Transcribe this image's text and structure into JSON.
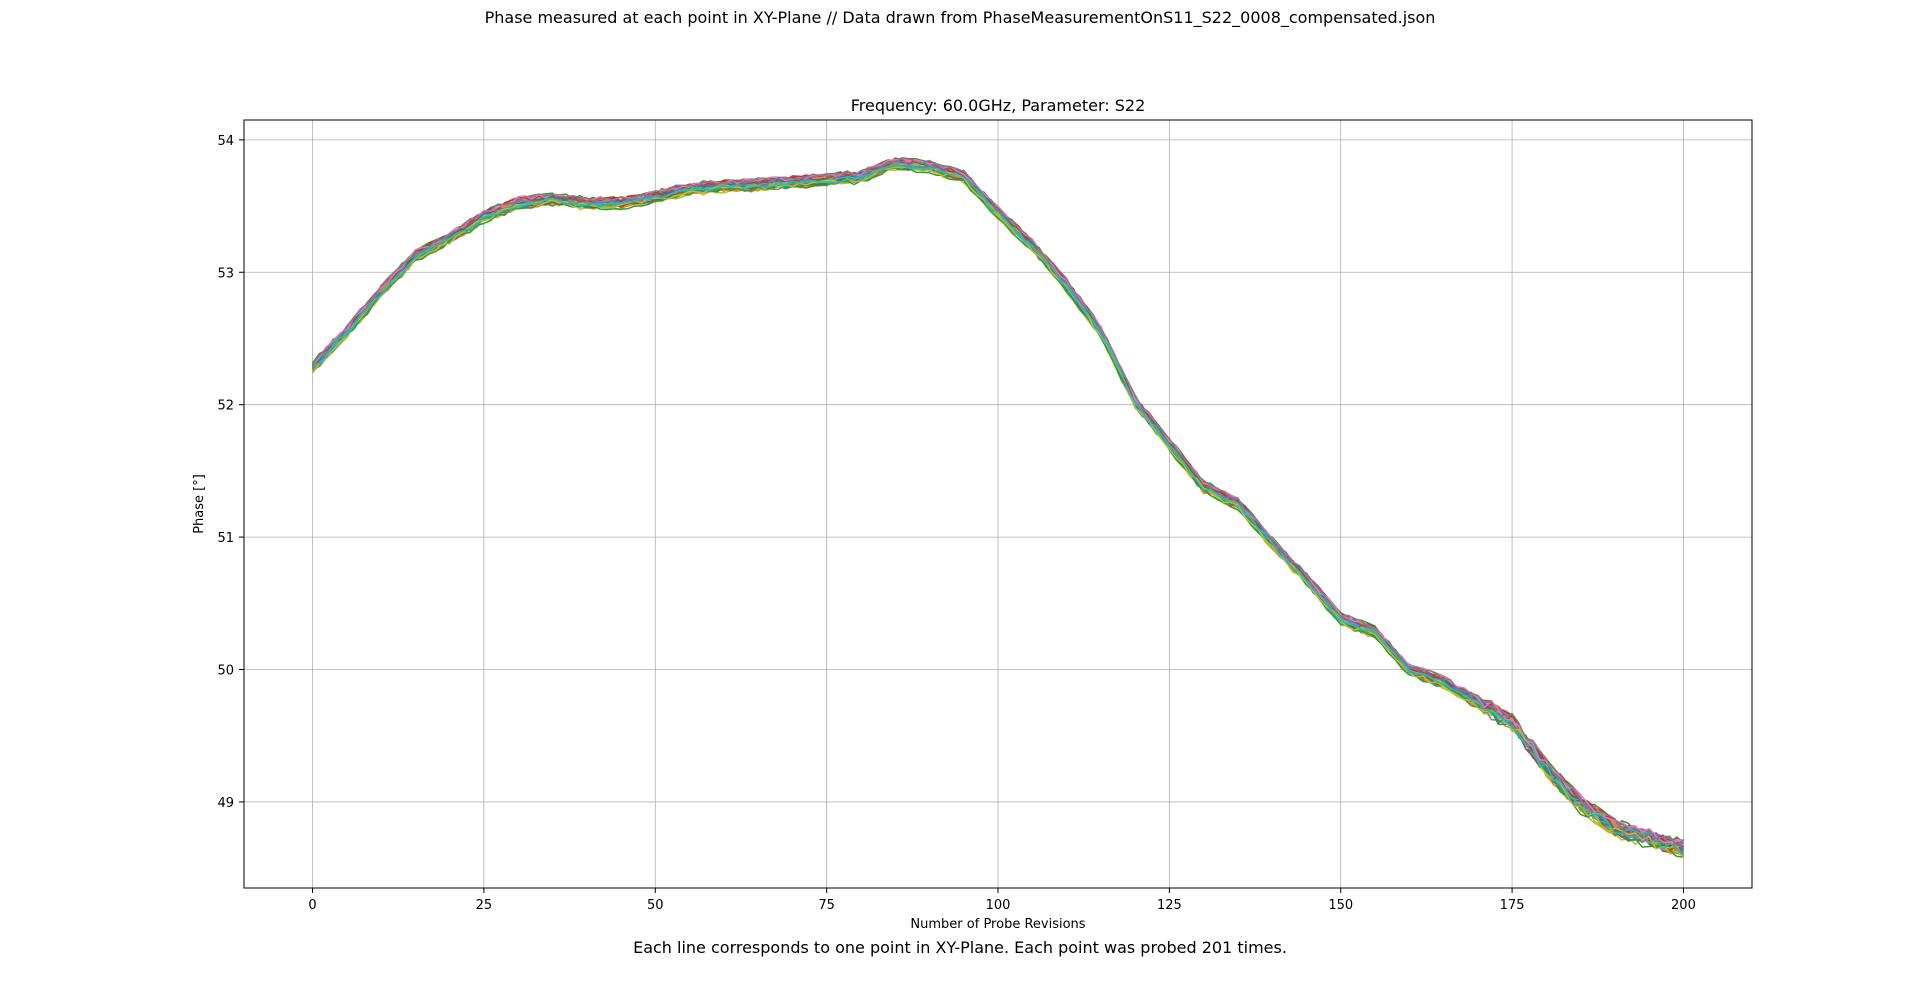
{
  "figure": {
    "suptitle": "Phase measured at each point in XY-Plane // Data drawn from PhaseMeasurementOnS11_S22_0008_compensated.json",
    "caption": "Each line corresponds to one point in XY-Plane. Each point was probed 201 times."
  },
  "chart_data": {
    "type": "line",
    "title": "Frequency: 60.0GHz, Parameter: S22",
    "xlabel": "Number of Probe Revisions",
    "ylabel": "Phase [°]",
    "xlim": [
      -10,
      210
    ],
    "ylim": [
      48.35,
      54.15
    ],
    "xticks": [
      0,
      25,
      50,
      75,
      100,
      125,
      150,
      175,
      200
    ],
    "yticks": [
      49,
      50,
      51,
      52,
      53,
      54
    ],
    "grid": true,
    "colors": [
      "#1f77b4",
      "#ff7f0e",
      "#2ca02c",
      "#d62728",
      "#9467bd",
      "#8c564b",
      "#e377c2",
      "#7f7f7f",
      "#bcbd22",
      "#17becf"
    ],
    "x": [
      0,
      5,
      10,
      15,
      20,
      25,
      30,
      35,
      40,
      45,
      50,
      55,
      60,
      65,
      70,
      75,
      80,
      85,
      90,
      95,
      100,
      105,
      110,
      115,
      120,
      125,
      130,
      135,
      140,
      145,
      150,
      155,
      160,
      165,
      170,
      175,
      180,
      185,
      190,
      195,
      200
    ],
    "mean_curve": [
      52.28,
      52.55,
      52.85,
      53.12,
      53.25,
      53.42,
      53.52,
      53.55,
      53.52,
      53.52,
      53.57,
      53.63,
      53.65,
      53.66,
      53.68,
      53.7,
      53.72,
      53.82,
      53.8,
      53.72,
      53.45,
      53.2,
      52.9,
      52.55,
      52.02,
      51.7,
      51.38,
      51.25,
      50.95,
      50.68,
      50.38,
      50.28,
      50.0,
      49.9,
      49.75,
      49.6,
      49.25,
      48.98,
      48.8,
      48.72,
      48.65
    ],
    "num_lines": 40,
    "samples_per_line": 201
  }
}
